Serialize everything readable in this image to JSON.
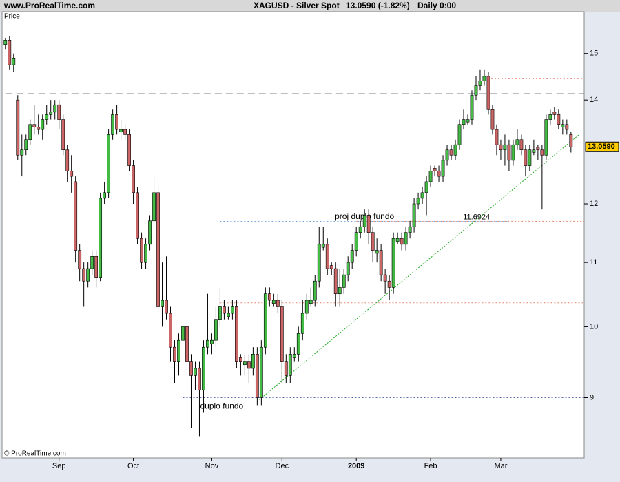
{
  "chart_data": {
    "type": "candlestick",
    "source": "www.ProRealTime.com",
    "title": "XAGUSD - Silver Spot",
    "subtitle": "13.0590 (-1.82%)",
    "timeframe": "Daily 0:00",
    "y_label": "Price",
    "copyright": "© ProRealTime.com",
    "log_scale": true,
    "up_color": "#44bb44",
    "down_color": "#cc6666",
    "ylim": [
      8.23,
      15.96
    ],
    "yticks": [
      9,
      10,
      11,
      12,
      14,
      15
    ],
    "last_price": {
      "value": 13.059,
      "label": "13.0590"
    },
    "categories": [
      null,
      null,
      null,
      null,
      null,
      null,
      null,
      null,
      null,
      null,
      null,
      null,
      null,
      "Sep",
      null,
      null,
      null,
      null,
      null,
      null,
      null,
      null,
      null,
      null,
      null,
      null,
      null,
      null,
      null,
      null,
      null,
      "Oct",
      null,
      null,
      null,
      null,
      null,
      null,
      null,
      null,
      null,
      null,
      null,
      null,
      null,
      null,
      null,
      null,
      null,
      null,
      "Nov",
      null,
      null,
      null,
      null,
      null,
      null,
      null,
      null,
      null,
      null,
      null,
      null,
      null,
      null,
      null,
      null,
      "Dec",
      null,
      null,
      null,
      null,
      null,
      null,
      null,
      null,
      null,
      null,
      null,
      null,
      null,
      null,
      null,
      null,
      null,
      "2009",
      null,
      null,
      null,
      null,
      null,
      null,
      null,
      null,
      null,
      null,
      null,
      null,
      null,
      null,
      null,
      null,
      null,
      "Feb",
      null,
      null,
      null,
      null,
      null,
      null,
      null,
      null,
      null,
      null,
      null,
      null,
      null,
      null,
      null,
      null,
      "Mar",
      null,
      null,
      null,
      null,
      null,
      null,
      null,
      null,
      null,
      null,
      null,
      null,
      null,
      null,
      null,
      null,
      null
    ],
    "open": [
      15.2,
      15.3,
      14.75,
      14.0,
      12.9,
      13.0,
      13.2,
      13.5,
      13.45,
      13.4,
      13.6,
      13.7,
      13.75,
      13.9,
      13.6,
      13.0,
      12.6,
      12.4,
      11.2,
      10.9,
      10.7,
      10.9,
      11.1,
      10.75,
      12.1,
      12.2,
      13.3,
      13.7,
      13.35,
      13.4,
      13.3,
      12.7,
      12.2,
      11.4,
      11.0,
      11.3,
      11.7,
      12.2,
      10.3,
      10.4,
      10.2,
      9.7,
      9.5,
      9.8,
      10.0,
      9.5,
      9.3,
      9.4,
      9.1,
      9.7,
      9.75,
      9.8,
      10.1,
      10.3,
      10.15,
      10.2,
      10.3,
      9.55,
      9.45,
      9.5,
      9.4,
      9.6,
      9.0,
      9.7,
      10.5,
      10.35,
      10.4,
      10.3,
      9.5,
      9.3,
      9.55,
      9.6,
      9.9,
      10.2,
      10.35,
      10.4,
      10.7,
      11.25,
      11.3,
      10.95,
      10.9,
      10.5,
      10.6,
      10.8,
      11.0,
      11.2,
      11.5,
      11.6,
      11.8,
      11.5,
      11.15,
      11.2,
      10.8,
      10.7,
      10.6,
      11.35,
      11.4,
      11.3,
      11.5,
      11.6,
      12.0,
      12.1,
      12.2,
      12.4,
      12.65,
      12.6,
      12.5,
      12.8,
      13.0,
      12.9,
      13.1,
      13.5,
      13.55,
      13.6,
      14.1,
      14.3,
      14.4,
      14.5,
      13.8,
      13.4,
      13.1,
      13.0,
      13.1,
      12.8,
      13.1,
      13.2,
      13.0,
      12.7,
      12.95,
      13.05,
      13.0,
      12.9,
      13.6,
      13.75,
      13.7,
      13.45,
      13.5,
      13.3
    ],
    "high": [
      15.35,
      15.4,
      15.0,
      14.1,
      13.3,
      13.3,
      13.6,
      13.9,
      13.7,
      13.7,
      13.9,
      14.0,
      14.0,
      14.0,
      13.7,
      13.1,
      12.9,
      12.5,
      11.3,
      11.0,
      11.0,
      11.2,
      11.2,
      12.2,
      12.4,
      13.4,
      13.8,
      13.9,
      13.6,
      13.5,
      13.4,
      12.8,
      12.3,
      11.5,
      11.4,
      11.8,
      12.5,
      12.3,
      11.0,
      11.1,
      10.3,
      9.8,
      9.9,
      10.2,
      10.1,
      9.6,
      9.5,
      9.5,
      9.8,
      10.5,
      9.9,
      10.3,
      10.6,
      10.4,
      10.3,
      10.4,
      10.4,
      9.6,
      9.6,
      9.6,
      9.7,
      9.7,
      9.8,
      10.6,
      10.6,
      10.5,
      10.5,
      10.4,
      9.6,
      9.7,
      9.7,
      10.0,
      10.4,
      10.5,
      10.6,
      10.8,
      11.6,
      11.6,
      11.4,
      11.0,
      11.0,
      10.9,
      10.9,
      11.1,
      11.3,
      11.6,
      11.7,
      11.9,
      11.9,
      11.6,
      11.4,
      11.3,
      10.9,
      10.8,
      11.5,
      11.5,
      11.5,
      11.6,
      11.7,
      12.1,
      12.2,
      12.3,
      12.5,
      12.7,
      12.7,
      12.7,
      12.9,
      13.1,
      13.1,
      13.2,
      13.6,
      13.8,
      13.7,
      14.2,
      14.5,
      14.65,
      14.65,
      14.6,
      13.9,
      13.5,
      13.2,
      13.3,
      13.2,
      13.2,
      13.4,
      13.3,
      13.1,
      13.1,
      13.2,
      13.1,
      13.1,
      13.7,
      13.8,
      13.85,
      13.8,
      13.6,
      13.6,
      13.35
    ],
    "low": [
      15.1,
      14.65,
      14.6,
      12.8,
      12.5,
      12.9,
      13.1,
      13.3,
      13.3,
      13.2,
      13.5,
      13.6,
      13.6,
      13.4,
      12.9,
      12.4,
      12.2,
      11.0,
      10.7,
      10.3,
      10.6,
      10.8,
      10.6,
      10.7,
      12.0,
      12.1,
      13.2,
      13.3,
      13.2,
      13.2,
      12.6,
      12.0,
      11.3,
      10.9,
      10.9,
      11.2,
      11.6,
      10.2,
      10.0,
      10.1,
      9.5,
      9.2,
      9.3,
      9.7,
      9.3,
      8.6,
      9.1,
      8.5,
      8.8,
      9.6,
      9.6,
      9.7,
      10.0,
      10.1,
      10.1,
      10.1,
      9.4,
      9.3,
      9.3,
      9.2,
      9.3,
      8.9,
      8.9,
      9.6,
      10.3,
      10.3,
      10.2,
      9.2,
      9.2,
      9.2,
      9.5,
      9.5,
      9.8,
      10.1,
      10.3,
      10.3,
      10.6,
      11.2,
      10.8,
      10.8,
      10.3,
      10.3,
      10.5,
      10.7,
      10.9,
      11.1,
      11.4,
      11.5,
      11.3,
      11.0,
      11.0,
      10.7,
      10.5,
      10.4,
      10.5,
      11.3,
      11.2,
      11.2,
      11.4,
      11.5,
      11.9,
      12.0,
      11.8,
      12.3,
      12.5,
      12.4,
      12.4,
      12.7,
      12.8,
      12.8,
      13.0,
      13.4,
      13.5,
      13.5,
      14.0,
      14.2,
      14.3,
      13.7,
      13.3,
      12.9,
      12.8,
      12.7,
      12.6,
      12.7,
      13.0,
      12.9,
      12.5,
      12.6,
      12.9,
      12.8,
      11.9,
      12.8,
      13.5,
      13.6,
      13.4,
      13.3,
      13.3,
      12.95
    ],
    "close": [
      15.3,
      14.75,
      14.9,
      12.9,
      13.0,
      13.2,
      13.5,
      13.45,
      13.4,
      13.6,
      13.7,
      13.75,
      13.9,
      13.6,
      13.0,
      12.6,
      12.5,
      11.2,
      10.9,
      10.7,
      10.9,
      11.1,
      10.75,
      12.1,
      12.2,
      13.3,
      13.7,
      13.4,
      13.4,
      13.3,
      12.7,
      12.2,
      11.4,
      11.0,
      11.3,
      11.7,
      12.2,
      10.3,
      10.4,
      10.2,
      9.7,
      9.5,
      9.8,
      10.0,
      9.5,
      9.3,
      9.4,
      9.1,
      9.7,
      9.8,
      9.8,
      10.1,
      10.3,
      10.2,
      10.2,
      10.3,
      9.5,
      9.5,
      9.5,
      9.4,
      9.6,
      9.0,
      9.7,
      10.5,
      10.4,
      10.4,
      10.3,
      9.5,
      9.3,
      9.6,
      9.6,
      9.9,
      10.2,
      10.4,
      10.4,
      10.7,
      11.3,
      11.3,
      10.9,
      10.9,
      10.5,
      10.6,
      10.8,
      11.0,
      11.2,
      11.5,
      11.6,
      11.8,
      11.5,
      11.2,
      11.2,
      10.8,
      10.7,
      10.6,
      11.4,
      11.4,
      11.3,
      11.5,
      11.6,
      12.0,
      12.1,
      12.2,
      12.4,
      12.6,
      12.6,
      12.5,
      12.8,
      13.0,
      12.9,
      13.1,
      13.5,
      13.6,
      13.6,
      14.1,
      14.3,
      14.4,
      14.5,
      13.8,
      13.4,
      13.1,
      13.0,
      13.1,
      12.8,
      13.1,
      13.2,
      13.0,
      12.7,
      13.0,
      13.0,
      13.0,
      12.9,
      13.6,
      13.7,
      13.7,
      13.5,
      13.5,
      13.4,
      13.059
    ],
    "hlines": [
      {
        "value": 14.13,
        "start": 0,
        "color": "#555555",
        "style": "dashed"
      },
      {
        "value": 11.6924,
        "start": 85,
        "color": "#e8826a",
        "style": "dotted",
        "show_value": true
      },
      {
        "value": 14.45,
        "start": 116,
        "color": "#e8826a",
        "style": "dotted"
      },
      {
        "value": 10.36,
        "start": 52,
        "color": "#e8826a",
        "style": "dotted"
      },
      {
        "value": 9.0,
        "start": 43,
        "color": "#5566aa",
        "style": "dotted",
        "label": "duplo fundo"
      },
      {
        "value": 11.69,
        "start": 52,
        "end": 122,
        "color": "#6699dd",
        "style": "dotted",
        "label": "proj duplo fundo"
      }
    ],
    "trendline": {
      "color": "#22aa22",
      "start": {
        "index": 61,
        "value": 8.95
      },
      "end": {
        "index": 139,
        "value": 13.3
      }
    }
  }
}
